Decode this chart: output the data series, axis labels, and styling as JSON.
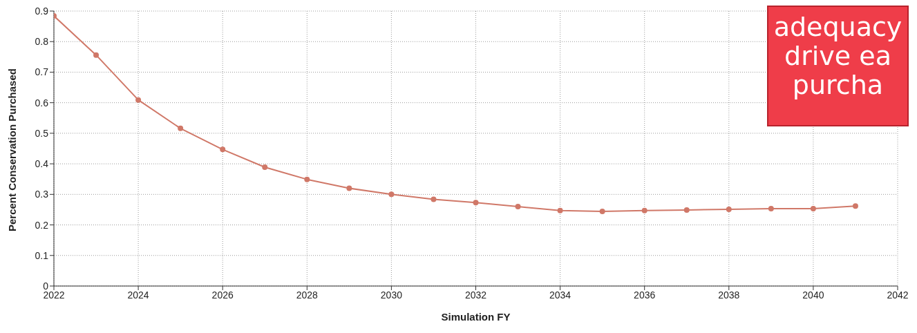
{
  "chart_data": {
    "type": "line",
    "xlabel": "Simulation FY",
    "ylabel": "Percent Conservation Purchased",
    "x": [
      2022,
      2023,
      2024,
      2025,
      2026,
      2027,
      2028,
      2029,
      2030,
      2031,
      2032,
      2033,
      2034,
      2035,
      2036,
      2037,
      2038,
      2039,
      2040,
      2041
    ],
    "series": [
      {
        "color": "#d07868",
        "values": [
          0.884,
          0.756,
          0.609,
          0.516,
          0.447,
          0.389,
          0.349,
          0.32,
          0.3,
          0.284,
          0.273,
          0.26,
          0.247,
          0.244,
          0.247,
          0.249,
          0.251,
          0.253,
          0.253,
          0.262
        ]
      }
    ],
    "xlim": [
      2022,
      2042
    ],
    "xticks": [
      2022,
      2024,
      2026,
      2028,
      2030,
      2032,
      2034,
      2036,
      2038,
      2040,
      2042
    ],
    "ylim": [
      0,
      0.9
    ],
    "yticks": [
      0,
      0.1,
      0.2,
      0.3,
      0.4,
      0.5,
      0.6,
      0.7,
      0.8,
      0.9
    ],
    "grid": true,
    "legend": false,
    "marker": "circle",
    "line_style": "solid",
    "annotations": [
      "adequacy",
      "drive ea",
      "purcha"
    ]
  }
}
